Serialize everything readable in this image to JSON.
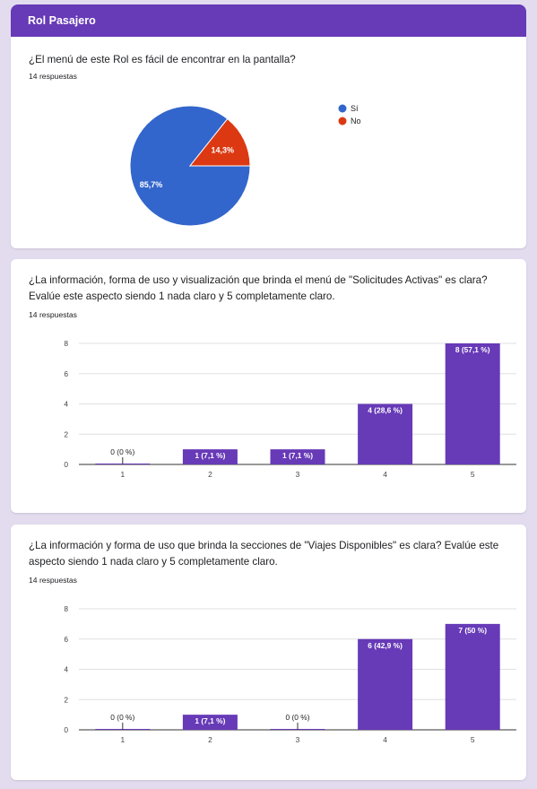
{
  "header": {
    "title": "Rol Pasajero"
  },
  "colors": {
    "header": "#673ab7",
    "bar": "#673ab7",
    "pie_si": "#3366cc",
    "pie_no": "#dc3912",
    "grid": "#e0e0e0"
  },
  "q1": {
    "question": "¿El menú de este Rol es fácil de encontrar en la pantalla?",
    "responses": "14 respuestas"
  },
  "q2": {
    "question": "¿La información, forma de uso y visualización que brinda el menú de \"Solicitudes Activas\" es clara? Evalúe este aspecto siendo 1 nada claro y 5 completamente claro.",
    "responses": "14 respuestas"
  },
  "q3": {
    "question": "¿La información y forma de uso que brinda la secciones de \"Viajes Disponibles\" es clara? Evalúe este aspecto siendo 1 nada claro y 5 completamente claro.",
    "responses": "14 respuestas"
  },
  "chart_data": [
    {
      "type": "pie",
      "labels": [
        "Sí",
        "No"
      ],
      "values": [
        85.7,
        14.3
      ],
      "data_labels": [
        "85,7%",
        "14,3%"
      ],
      "colors": [
        "#3366cc",
        "#dc3912"
      ],
      "legend": "right"
    },
    {
      "type": "bar",
      "categories": [
        "1",
        "2",
        "3",
        "4",
        "5"
      ],
      "values": [
        0,
        1,
        1,
        4,
        8
      ],
      "data_labels": [
        "0 (0 %)",
        "1 (7,1 %)",
        "1 (7,1 %)",
        "4 (28,6 %)",
        "8 (57,1 %)"
      ],
      "ylim": [
        0,
        8
      ],
      "yticks": [
        "0",
        "2",
        "4",
        "6",
        "8"
      ],
      "grid": true
    },
    {
      "type": "bar",
      "categories": [
        "1",
        "2",
        "3",
        "4",
        "5"
      ],
      "values": [
        0,
        1,
        0,
        6,
        7
      ],
      "data_labels": [
        "0 (0 %)",
        "1 (7,1 %)",
        "0 (0 %)",
        "6 (42,9 %)",
        "7 (50 %)"
      ],
      "ylim": [
        0,
        8
      ],
      "yticks": [
        "0",
        "2",
        "4",
        "6",
        "8"
      ],
      "grid": true
    }
  ]
}
